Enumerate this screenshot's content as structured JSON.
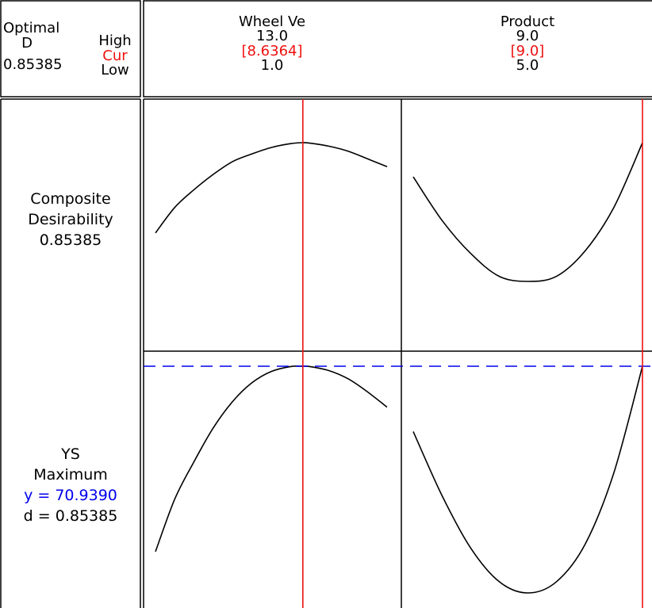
{
  "optimal_box": {
    "optimal_label": "Optimal",
    "d_label": "D",
    "d_value": "0.85385",
    "high_label": "High",
    "cur_label": "Cur",
    "low_label": "Low"
  },
  "factors": [
    {
      "name": "Wheel Ve",
      "high": "13.0",
      "cur": "[8.6364]",
      "low": "1.0"
    },
    {
      "name": "Product",
      "high": "9.0",
      "cur": "[9.0]",
      "low": "5.0"
    }
  ],
  "responses": [
    {
      "lines": [
        "Composite",
        "Desirability",
        "0.85385"
      ]
    },
    {
      "name": "YS",
      "goal": "Maximum",
      "y_text": "y = 70.9390",
      "d_text": "d = 0.85385"
    }
  ],
  "colors": {
    "current_line": "#ee1111",
    "optimum_line": "#0000ee",
    "curve": "#000000"
  },
  "chart_data": {
    "type": "line",
    "factors": [
      {
        "name": "Wheel Ve",
        "range": [
          1.0,
          13.0
        ],
        "current": 8.6364
      },
      {
        "name": "Product",
        "range": [
          5.0,
          9.0
        ],
        "current": 9.0
      }
    ],
    "panels": [
      {
        "row": "Composite Desirability",
        "column": "Wheel Ve",
        "x": [
          1.0,
          2.0,
          3.0,
          4.0,
          5.0,
          6.0,
          7.0,
          8.0,
          8.6364,
          9.0,
          10.0,
          11.0,
          12.0,
          13.0
        ],
        "y": [
          0.5,
          0.6,
          0.67,
          0.73,
          0.78,
          0.81,
          0.835,
          0.85,
          0.85385,
          0.852,
          0.84,
          0.82,
          0.79,
          0.76
        ]
      },
      {
        "row": "Composite Desirability",
        "column": "Product",
        "x": [
          5.0,
          5.5,
          6.0,
          6.5,
          7.0,
          7.5,
          8.0,
          8.5,
          9.0
        ],
        "y": [
          0.72,
          0.55,
          0.42,
          0.33,
          0.31,
          0.33,
          0.43,
          0.6,
          0.85385
        ]
      },
      {
        "row": "YS",
        "column": "Wheel Ve",
        "x": [
          1.0,
          2.0,
          3.0,
          4.0,
          5.0,
          6.0,
          7.0,
          8.0,
          8.6364,
          9.0,
          10.0,
          11.0,
          12.0,
          13.0
        ],
        "y": [
          66.0,
          67.4,
          68.4,
          69.3,
          70.0,
          70.5,
          70.8,
          70.93,
          70.939,
          70.93,
          70.82,
          70.6,
          70.25,
          69.85
        ]
      },
      {
        "row": "YS",
        "column": "Product",
        "x": [
          5.0,
          5.5,
          6.0,
          6.5,
          7.0,
          7.5,
          8.0,
          8.5,
          9.0
        ],
        "y": [
          69.2,
          67.5,
          66.1,
          65.2,
          64.9,
          65.2,
          66.2,
          68.1,
          70.939
        ]
      }
    ],
    "optimum_y": 70.939
  }
}
